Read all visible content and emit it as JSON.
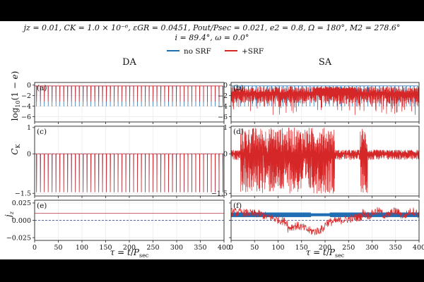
{
  "header": {
    "params_line1": "jz = 0.01,    CK = 1.0 × 10⁻⁶,    εGR = 0.0451,    Pout/Psec = 0.021,    e2 = 0.8,    Ω = 180°,    M2 = 278.6°",
    "params_line2": "i = 89.4°,    ω = 0.0°"
  },
  "legend": [
    {
      "label": "no SRF",
      "color": "#1f6db3"
    },
    {
      "label": "+SRF",
      "color": "#d62728"
    }
  ],
  "colors": {
    "no_srf": "#1f6db3",
    "srf": "#d62728",
    "zero_line": "#2a3a8a"
  },
  "columns": [
    {
      "title": "DA"
    },
    {
      "title": "SA"
    }
  ],
  "chart_data": [
    {
      "id": "a",
      "panel_label": "(a)",
      "column": "DA",
      "type": "line",
      "ylabel": "log10(1 − e)",
      "ylim": [
        -7,
        0.5
      ],
      "yticks": [
        0,
        -2,
        -4,
        -6
      ],
      "xlim": [
        0,
        400
      ],
      "grid": true,
      "series": [
        {
          "name": "no SRF",
          "pattern": "periodic_spikes",
          "period": 8.2,
          "baseline": -0.15,
          "min": -4.0
        },
        {
          "name": "+SRF",
          "pattern": "periodic_spikes",
          "period": 8.2,
          "baseline": -0.15,
          "min": -3.1
        }
      ]
    },
    {
      "id": "b",
      "panel_label": "(b)",
      "column": "SA",
      "type": "line",
      "ylim": [
        -7,
        0.5
      ],
      "yticks": [
        0,
        -2,
        -4,
        -6
      ],
      "xlim": [
        0,
        400
      ],
      "grid": true,
      "series": [
        {
          "name": "no SRF",
          "pattern": "periodic_spikes",
          "period": 8.2,
          "baseline": -0.15,
          "min": -4.0
        },
        {
          "name": "+SRF",
          "pattern": "chaotic_band",
          "band_top": [
            -0.3,
            -1.5
          ],
          "band_bottom": [
            -1.8,
            -3.5
          ],
          "spike_min": [
            -3.5,
            -5.8
          ]
        }
      ]
    },
    {
      "id": "c",
      "panel_label": "(c)",
      "column": "DA",
      "type": "line",
      "ylabel": "CK",
      "ylim": [
        -1.6,
        1.05
      ],
      "yticks": [
        1,
        0,
        -1.5
      ],
      "ytick_labels": [
        "1",
        "0",
        "−1.5"
      ],
      "xlim": [
        0,
        400
      ],
      "grid": true,
      "zero_line": true,
      "series": [
        {
          "name": "no SRF",
          "pattern": "periodic_spikes",
          "period": 8.2,
          "baseline": 0.0,
          "min": -1.45
        },
        {
          "name": "+SRF",
          "pattern": "periodic_spikes",
          "period": 8.2,
          "baseline": 0.0,
          "min": -1.45
        }
      ]
    },
    {
      "id": "d",
      "panel_label": "(d)",
      "column": "SA",
      "type": "line",
      "ylim": [
        -1.6,
        1.05
      ],
      "yticks": [
        1,
        0,
        -1.5
      ],
      "ytick_labels": [
        "1",
        "0",
        "−1.5"
      ],
      "xlim": [
        0,
        400
      ],
      "grid": true,
      "zero_line": true,
      "series": [
        {
          "name": "+SRF",
          "pattern": "chaotic_bursts",
          "range": [
            -1.5,
            1.0
          ]
        }
      ]
    },
    {
      "id": "e",
      "panel_label": "(e)",
      "column": "DA",
      "type": "line",
      "ylabel": "jz",
      "ylim": [
        -0.029,
        0.029
      ],
      "yticks": [
        0.025,
        0.0,
        -0.025
      ],
      "ytick_labels": [
        "0.025",
        "0.000",
        "−0.025"
      ],
      "xlabel": "τ = t/Psec",
      "xlim": [
        0,
        400
      ],
      "xticks": [
        0,
        50,
        100,
        150,
        200,
        250,
        300,
        350,
        400
      ],
      "grid": true,
      "zero_line": true,
      "series": [
        {
          "name": "no SRF",
          "pattern": "constant",
          "value": 0.01
        },
        {
          "name": "+SRF",
          "pattern": "constant",
          "value": 0.01
        }
      ]
    },
    {
      "id": "f",
      "panel_label": "(f)",
      "column": "SA",
      "type": "line",
      "ylim": [
        -0.029,
        0.029
      ],
      "yticks": [
        0.025,
        0.0,
        -0.025
      ],
      "xlabel": "τ = t/Psec",
      "xlim": [
        0,
        400
      ],
      "xticks": [
        0,
        50,
        100,
        150,
        200,
        250,
        300,
        350,
        400
      ],
      "grid": true,
      "zero_line": true,
      "series": [
        {
          "name": "no SRF",
          "pattern": "oscillation_band",
          "center": 0.008,
          "half_width": 0.003
        },
        {
          "name": "+SRF",
          "pattern": "noisy_drift",
          "start": 0.012,
          "dip_center_t": 150,
          "dip_value": -0.012,
          "end": 0.01
        }
      ]
    }
  ]
}
